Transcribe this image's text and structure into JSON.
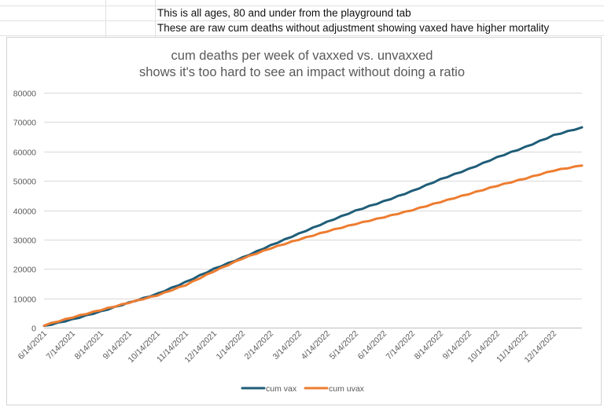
{
  "sheet": {
    "top_partial_text": "",
    "notes": [
      "This is all ages, 80 and under from the playground tab",
      "These are raw cum deaths without adjustment showing vaxed have higher mortality"
    ]
  },
  "chart_data": {
    "type": "line",
    "title": "cum deaths per week of vaxxed vs. unvaxxed",
    "subtitle": "shows it's too hard to see an impact without doing a ratio",
    "xlabel": "",
    "ylabel": "",
    "ylim": [
      0,
      80000
    ],
    "yticks": [
      0,
      10000,
      20000,
      30000,
      40000,
      50000,
      60000,
      70000,
      80000
    ],
    "grid": true,
    "legend_position": "bottom",
    "x_tick_labels": [
      "6/14/2021",
      "7/14/2021",
      "8/14/2021",
      "9/14/2021",
      "10/14/2021",
      "11/14/2021",
      "12/14/2021",
      "1/14/2022",
      "2/14/2022",
      "3/14/2022",
      "4/14/2022",
      "5/14/2022",
      "6/14/2022",
      "7/14/2022",
      "8/14/2022",
      "9/14/2022",
      "10/14/2022",
      "11/14/2022",
      "12/14/2022"
    ],
    "x_range_months": [
      0,
      19
    ],
    "series": [
      {
        "name": "cum vax",
        "color": "#1f5d78",
        "x_months": [
          0,
          1,
          2,
          3,
          4,
          5,
          6,
          7,
          8,
          9,
          10,
          11,
          12,
          13,
          14,
          15,
          16,
          17,
          18,
          19
        ],
        "values": [
          500,
          2800,
          5500,
          8500,
          11500,
          15500,
          20000,
          23800,
          28000,
          32000,
          36000,
          39800,
          43000,
          46500,
          50500,
          54000,
          58000,
          61500,
          65500,
          68200
        ]
      },
      {
        "name": "cum uvax",
        "color": "#ed7d31",
        "x_months": [
          0,
          1,
          2,
          3,
          4,
          5,
          6,
          7,
          8,
          9,
          10,
          11,
          12,
          13,
          14,
          15,
          16,
          17,
          18,
          19
        ],
        "values": [
          800,
          3500,
          6000,
          8500,
          11000,
          14500,
          19200,
          23500,
          27000,
          30000,
          32800,
          35300,
          37600,
          40000,
          42800,
          45500,
          48300,
          50800,
          53500,
          55200
        ]
      }
    ]
  }
}
